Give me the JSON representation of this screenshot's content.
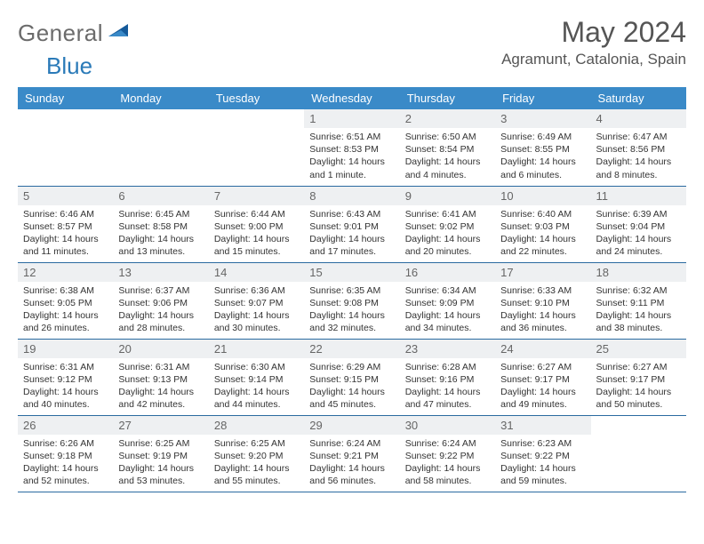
{
  "brand": {
    "part1": "General",
    "part2": "Blue"
  },
  "title": "May 2024",
  "location": "Agramunt, Catalonia, Spain",
  "colors": {
    "header_bg": "#3a8ac8",
    "header_text": "#ffffff",
    "daynum_bg": "#eef0f2",
    "row_border": "#2a6aa0",
    "brand_gray": "#6b6b6b",
    "brand_blue": "#2a7ab8"
  },
  "typography": {
    "title_fontsize": 32,
    "location_fontsize": 17,
    "weekday_fontsize": 13,
    "daynum_fontsize": 13,
    "body_fontsize": 10.5
  },
  "weekdays": [
    "Sunday",
    "Monday",
    "Tuesday",
    "Wednesday",
    "Thursday",
    "Friday",
    "Saturday"
  ],
  "weeks": [
    [
      null,
      null,
      null,
      {
        "n": "1",
        "sunrise": "6:51 AM",
        "sunset": "8:53 PM",
        "daylight": "14 hours and 1 minute."
      },
      {
        "n": "2",
        "sunrise": "6:50 AM",
        "sunset": "8:54 PM",
        "daylight": "14 hours and 4 minutes."
      },
      {
        "n": "3",
        "sunrise": "6:49 AM",
        "sunset": "8:55 PM",
        "daylight": "14 hours and 6 minutes."
      },
      {
        "n": "4",
        "sunrise": "6:47 AM",
        "sunset": "8:56 PM",
        "daylight": "14 hours and 8 minutes."
      }
    ],
    [
      {
        "n": "5",
        "sunrise": "6:46 AM",
        "sunset": "8:57 PM",
        "daylight": "14 hours and 11 minutes."
      },
      {
        "n": "6",
        "sunrise": "6:45 AM",
        "sunset": "8:58 PM",
        "daylight": "14 hours and 13 minutes."
      },
      {
        "n": "7",
        "sunrise": "6:44 AM",
        "sunset": "9:00 PM",
        "daylight": "14 hours and 15 minutes."
      },
      {
        "n": "8",
        "sunrise": "6:43 AM",
        "sunset": "9:01 PM",
        "daylight": "14 hours and 17 minutes."
      },
      {
        "n": "9",
        "sunrise": "6:41 AM",
        "sunset": "9:02 PM",
        "daylight": "14 hours and 20 minutes."
      },
      {
        "n": "10",
        "sunrise": "6:40 AM",
        "sunset": "9:03 PM",
        "daylight": "14 hours and 22 minutes."
      },
      {
        "n": "11",
        "sunrise": "6:39 AM",
        "sunset": "9:04 PM",
        "daylight": "14 hours and 24 minutes."
      }
    ],
    [
      {
        "n": "12",
        "sunrise": "6:38 AM",
        "sunset": "9:05 PM",
        "daylight": "14 hours and 26 minutes."
      },
      {
        "n": "13",
        "sunrise": "6:37 AM",
        "sunset": "9:06 PM",
        "daylight": "14 hours and 28 minutes."
      },
      {
        "n": "14",
        "sunrise": "6:36 AM",
        "sunset": "9:07 PM",
        "daylight": "14 hours and 30 minutes."
      },
      {
        "n": "15",
        "sunrise": "6:35 AM",
        "sunset": "9:08 PM",
        "daylight": "14 hours and 32 minutes."
      },
      {
        "n": "16",
        "sunrise": "6:34 AM",
        "sunset": "9:09 PM",
        "daylight": "14 hours and 34 minutes."
      },
      {
        "n": "17",
        "sunrise": "6:33 AM",
        "sunset": "9:10 PM",
        "daylight": "14 hours and 36 minutes."
      },
      {
        "n": "18",
        "sunrise": "6:32 AM",
        "sunset": "9:11 PM",
        "daylight": "14 hours and 38 minutes."
      }
    ],
    [
      {
        "n": "19",
        "sunrise": "6:31 AM",
        "sunset": "9:12 PM",
        "daylight": "14 hours and 40 minutes."
      },
      {
        "n": "20",
        "sunrise": "6:31 AM",
        "sunset": "9:13 PM",
        "daylight": "14 hours and 42 minutes."
      },
      {
        "n": "21",
        "sunrise": "6:30 AM",
        "sunset": "9:14 PM",
        "daylight": "14 hours and 44 minutes."
      },
      {
        "n": "22",
        "sunrise": "6:29 AM",
        "sunset": "9:15 PM",
        "daylight": "14 hours and 45 minutes."
      },
      {
        "n": "23",
        "sunrise": "6:28 AM",
        "sunset": "9:16 PM",
        "daylight": "14 hours and 47 minutes."
      },
      {
        "n": "24",
        "sunrise": "6:27 AM",
        "sunset": "9:17 PM",
        "daylight": "14 hours and 49 minutes."
      },
      {
        "n": "25",
        "sunrise": "6:27 AM",
        "sunset": "9:17 PM",
        "daylight": "14 hours and 50 minutes."
      }
    ],
    [
      {
        "n": "26",
        "sunrise": "6:26 AM",
        "sunset": "9:18 PM",
        "daylight": "14 hours and 52 minutes."
      },
      {
        "n": "27",
        "sunrise": "6:25 AM",
        "sunset": "9:19 PM",
        "daylight": "14 hours and 53 minutes."
      },
      {
        "n": "28",
        "sunrise": "6:25 AM",
        "sunset": "9:20 PM",
        "daylight": "14 hours and 55 minutes."
      },
      {
        "n": "29",
        "sunrise": "6:24 AM",
        "sunset": "9:21 PM",
        "daylight": "14 hours and 56 minutes."
      },
      {
        "n": "30",
        "sunrise": "6:24 AM",
        "sunset": "9:22 PM",
        "daylight": "14 hours and 58 minutes."
      },
      {
        "n": "31",
        "sunrise": "6:23 AM",
        "sunset": "9:22 PM",
        "daylight": "14 hours and 59 minutes."
      },
      null
    ]
  ],
  "labels": {
    "sunrise": "Sunrise:",
    "sunset": "Sunset:",
    "daylight": "Daylight:"
  }
}
